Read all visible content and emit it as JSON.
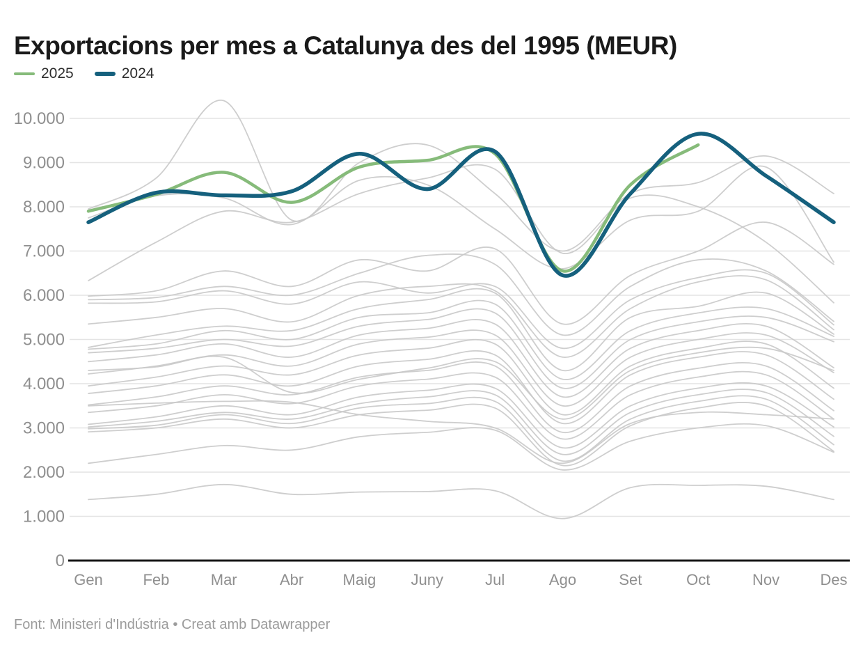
{
  "header": {
    "title": "Exportacions per mes a Catalunya des del 1995 (MEUR)"
  },
  "legend": {
    "items": [
      {
        "label": "2025",
        "color": "#86bb7a"
      },
      {
        "label": "2024",
        "color": "#15607d"
      }
    ]
  },
  "footer": {
    "text": "Font: Ministeri d'Indústria • Creat amb Datawrapper"
  },
  "colors": {
    "accent_2025": "#86bb7a",
    "accent_2024": "#15607d",
    "background_line": "#c9c9c9",
    "gridline": "#e4e4e4",
    "axis_baseline": "#161616",
    "axis_text": "#8f8f8f"
  },
  "chart_data": {
    "type": "line",
    "title": "Exportacions per mes a Catalunya des del 1995 (MEUR)",
    "xlabel": "",
    "ylabel": "",
    "categories": [
      "Gen",
      "Feb",
      "Mar",
      "Abr",
      "Maig",
      "Juny",
      "Jul",
      "Ago",
      "Set",
      "Oct",
      "Nov",
      "Des"
    ],
    "ylim": [
      0,
      10500
    ],
    "grid": "horizontal",
    "legend_position": "top-left",
    "y_ticks": [
      {
        "value": 0,
        "label": "0"
      },
      {
        "value": 1000,
        "label": "1.000"
      },
      {
        "value": 2000,
        "label": "2.000"
      },
      {
        "value": 3000,
        "label": "3.000"
      },
      {
        "value": 4000,
        "label": "4.000"
      },
      {
        "value": 5000,
        "label": "5.000"
      },
      {
        "value": 6000,
        "label": "6.000"
      },
      {
        "value": 7000,
        "label": "7.000"
      },
      {
        "value": 8000,
        "label": "8.000"
      },
      {
        "value": 9000,
        "label": "9.000"
      },
      {
        "value": 10000,
        "label": "10.000"
      }
    ],
    "series": [
      {
        "name": "2025",
        "color": "#86bb7a",
        "width": 4.5,
        "values": [
          7900,
          8280,
          8780,
          8100,
          8900,
          9050,
          9200,
          6550,
          8500,
          9400
        ]
      },
      {
        "name": "2024",
        "color": "#15607d",
        "width": 5.5,
        "values": [
          7650,
          8320,
          8260,
          8350,
          9200,
          8400,
          9250,
          6450,
          8300,
          9650,
          8700,
          7650
        ]
      }
    ],
    "background_series_note": "unlabeled grey lines, one per year 1995-2023, values estimated from pixels",
    "background_color": "#c9c9c9",
    "background_series": [
      {
        "values": [
          7950,
          8650,
          10400,
          7700,
          9000,
          9400,
          8300,
          7000,
          8300,
          8550,
          9150,
          8300
        ]
      },
      {
        "values": [
          7750,
          8250,
          8200,
          7600,
          8600,
          8500,
          7500,
          6600,
          7700,
          7900,
          8900,
          6750
        ]
      },
      {
        "values": [
          6330,
          7200,
          7900,
          7650,
          8300,
          8650,
          8850,
          6950,
          8200,
          8000,
          7200,
          5830
        ]
      },
      {
        "values": [
          5980,
          6100,
          6550,
          6200,
          6800,
          6550,
          7050,
          5350,
          6450,
          7000,
          7650,
          6700
        ]
      },
      {
        "values": [
          5900,
          5950,
          6200,
          6000,
          6500,
          6900,
          6700,
          5100,
          6200,
          6800,
          6550,
          5410
        ]
      },
      {
        "values": [
          5820,
          5850,
          6100,
          5800,
          6300,
          6050,
          6200,
          4800,
          5900,
          6400,
          6500,
          5330
        ]
      },
      {
        "values": [
          5350,
          5500,
          5700,
          5400,
          6000,
          6200,
          6100,
          4600,
          5700,
          6300,
          6350,
          5220
        ]
      },
      {
        "values": [
          4820,
          5100,
          5300,
          5200,
          5700,
          5900,
          6050,
          4300,
          5500,
          5750,
          6050,
          5120
        ]
      },
      {
        "values": [
          4780,
          4900,
          5200,
          5000,
          5500,
          5600,
          5800,
          4100,
          5200,
          5600,
          5700,
          5070
        ]
      },
      {
        "values": [
          4700,
          4800,
          5000,
          4850,
          5300,
          5450,
          5600,
          3900,
          5000,
          5400,
          5500,
          4950
        ]
      },
      {
        "values": [
          4500,
          4650,
          4900,
          4600,
          5100,
          5250,
          5350,
          3700,
          4800,
          5200,
          5300,
          4360
        ]
      },
      {
        "values": [
          4300,
          4380,
          4600,
          3800,
          4100,
          4350,
          4500,
          3200,
          4300,
          4700,
          4800,
          4300
        ]
      },
      {
        "values": [
          4220,
          4400,
          4650,
          4400,
          4900,
          5050,
          5100,
          3500,
          4600,
          5000,
          5100,
          4250
        ]
      },
      {
        "values": [
          3950,
          4150,
          4400,
          4200,
          4650,
          4800,
          4900,
          3300,
          4400,
          4800,
          4900,
          3900
        ]
      },
      {
        "values": [
          3780,
          3950,
          4200,
          3950,
          4400,
          4550,
          4650,
          3100,
          4200,
          4600,
          4650,
          3650
        ]
      },
      {
        "values": [
          3520,
          3700,
          3950,
          3750,
          4150,
          4300,
          4400,
          2900,
          3950,
          4350,
          4400,
          3390
        ]
      },
      {
        "values": [
          3500,
          3560,
          3600,
          3580,
          3300,
          3150,
          3000,
          2200,
          3100,
          3350,
          3300,
          3200
        ]
      },
      {
        "values": [
          3350,
          3500,
          3750,
          3550,
          3950,
          4100,
          4150,
          2750,
          3750,
          4150,
          4200,
          3200
        ]
      },
      {
        "values": [
          3080,
          3250,
          3500,
          3300,
          3700,
          3850,
          3900,
          2550,
          3500,
          3900,
          3950,
          3020
        ]
      },
      {
        "values": [
          3020,
          3150,
          3350,
          3200,
          3550,
          3700,
          3750,
          2400,
          3350,
          3750,
          3800,
          2810
        ]
      },
      {
        "values": [
          2980,
          3060,
          3300,
          3100,
          3450,
          3550,
          3600,
          2250,
          3200,
          3600,
          3650,
          2620
        ]
      },
      {
        "values": [
          2910,
          3000,
          3200,
          3000,
          3300,
          3400,
          3450,
          2150,
          3050,
          3450,
          3500,
          2470
        ]
      },
      {
        "values": [
          2200,
          2400,
          2600,
          2500,
          2800,
          2900,
          2950,
          2050,
          2700,
          3000,
          3050,
          2450
        ]
      },
      {
        "values": [
          1380,
          1500,
          1720,
          1500,
          1550,
          1560,
          1580,
          950,
          1650,
          1700,
          1680,
          1380
        ]
      }
    ]
  }
}
